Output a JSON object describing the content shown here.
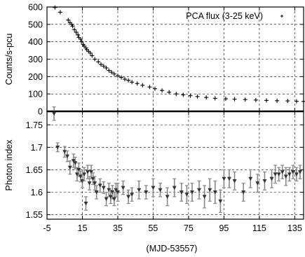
{
  "chart_data": [
    {
      "type": "scatter",
      "xlabel": "",
      "ylabel": "Counts/s-pcu",
      "xlim": [
        -5,
        140
      ],
      "ylim": [
        0,
        600
      ],
      "yticks": [
        "0",
        "100",
        "200",
        "300",
        "400",
        "500",
        "600"
      ],
      "grid": true,
      "legend_position": "top-right",
      "series": [
        {
          "name": "PCA flux (3-25 keV)",
          "marker": "plus",
          "x": [
            -0.5,
            2.5,
            7,
            8,
            9,
            9.5,
            10.5,
            11.5,
            12.5,
            13,
            14,
            14.5,
            15.5,
            16,
            17,
            17.5,
            18.5,
            19.5,
            20.5,
            22,
            24,
            25.5,
            27,
            28.5,
            30,
            31.5,
            33,
            35,
            37,
            39,
            41,
            43,
            46,
            49,
            53,
            56,
            60,
            64,
            68,
            72,
            76,
            80,
            85,
            90,
            96,
            101,
            107,
            113,
            119,
            125,
            131,
            136,
            140
          ],
          "y": [
            597,
            570,
            525,
            510,
            500,
            490,
            470,
            455,
            440,
            425,
            415,
            400,
            385,
            375,
            365,
            355,
            345,
            335,
            320,
            300,
            285,
            270,
            260,
            250,
            235,
            225,
            215,
            205,
            195,
            185,
            178,
            168,
            160,
            150,
            140,
            130,
            120,
            110,
            100,
            95,
            90,
            85,
            80,
            75,
            72,
            70,
            68,
            65,
            63,
            61,
            60,
            58,
            57
          ]
        }
      ]
    },
    {
      "type": "scatter",
      "xlabel": "(MJD-53557)",
      "ylabel": "Photon index",
      "xlim": [
        -5,
        140
      ],
      "ylim": [
        1.54,
        1.78
      ],
      "xticks": [
        "-5",
        "15",
        "35",
        "55",
        "75",
        "95",
        "115",
        "135"
      ],
      "yticks": [
        "1.55",
        "1.6",
        "1.65",
        "1.7",
        "1.75"
      ],
      "grid": true,
      "series": [
        {
          "marker": "triangle-down",
          "x": [
            -1,
            1,
            5,
            6.5,
            8,
            10,
            11,
            12,
            13,
            14,
            15,
            16,
            17,
            18,
            19,
            20,
            21,
            22,
            23,
            25,
            27,
            28.5,
            30,
            31,
            32,
            33,
            34,
            35,
            38,
            41,
            43,
            47,
            51,
            55,
            59,
            63,
            67,
            71,
            74,
            77,
            81,
            84,
            87,
            90,
            93,
            95,
            98,
            101,
            106,
            110,
            114,
            118,
            122,
            124,
            126,
            128,
            130,
            132,
            134,
            136,
            138
          ],
          "y": [
            1.775,
            1.7,
            1.69,
            1.68,
            1.655,
            1.67,
            1.665,
            1.64,
            1.65,
            1.635,
            1.625,
            1.64,
            1.575,
            1.645,
            1.62,
            1.645,
            1.63,
            1.62,
            1.6,
            1.615,
            1.61,
            1.585,
            1.605,
            1.59,
            1.6,
            1.585,
            1.605,
            1.6,
            1.61,
            1.59,
            1.595,
            1.605,
            1.6,
            1.61,
            1.605,
            1.59,
            1.61,
            1.6,
            1.595,
            1.6,
            1.605,
            1.59,
            1.605,
            1.6,
            1.58,
            1.63,
            1.63,
            1.625,
            1.6,
            1.63,
            1.62,
            1.625,
            1.63,
            1.64,
            1.64,
            1.645,
            1.635,
            1.64,
            1.645,
            1.64,
            1.645
          ],
          "err": [
            0.015,
            0.01,
            0.012,
            0.012,
            0.015,
            0.015,
            0.013,
            0.015,
            0.015,
            0.012,
            0.015,
            0.015,
            0.015,
            0.015,
            0.015,
            0.015,
            0.013,
            0.015,
            0.015,
            0.015,
            0.013,
            0.015,
            0.015,
            0.015,
            0.015,
            0.015,
            0.015,
            0.02,
            0.015,
            0.015,
            0.015,
            0.02,
            0.015,
            0.02,
            0.015,
            0.02,
            0.02,
            0.02,
            0.02,
            0.02,
            0.02,
            0.025,
            0.025,
            0.025,
            0.025,
            0.02,
            0.02,
            0.02,
            0.02,
            0.02,
            0.02,
            0.02,
            0.02,
            0.02,
            0.015,
            0.015,
            0.02,
            0.015,
            0.015,
            0.015,
            0.015
          ]
        }
      ]
    }
  ],
  "colors": {
    "axis": "#000000",
    "grid": "#000000",
    "marker_top": "#000000",
    "marker_bottom": "#333333",
    "errorbar": "#888888"
  }
}
